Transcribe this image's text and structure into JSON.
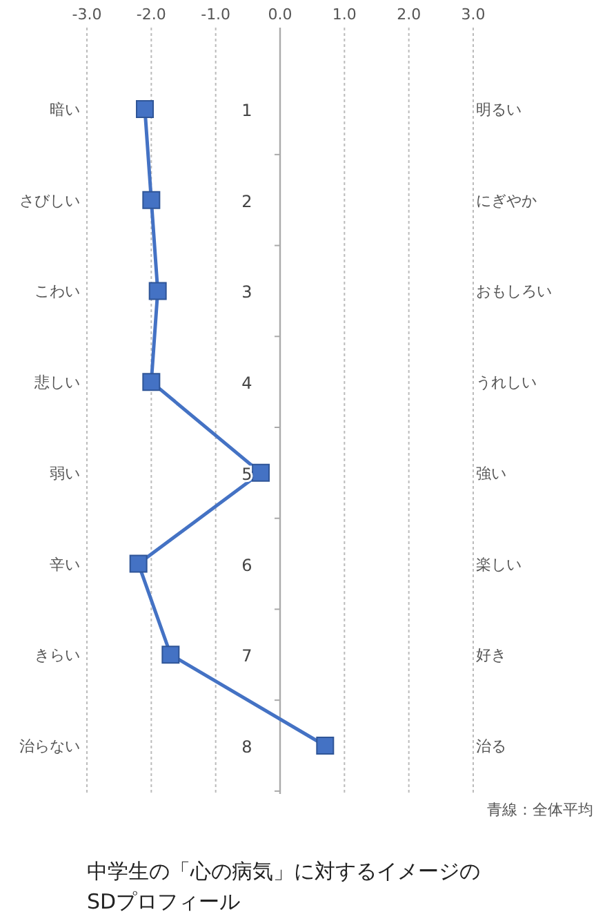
{
  "chart_data": {
    "type": "line",
    "orientation": "horizontal",
    "title": "中学生の「心の病気」に対するイメージのSDプロフィール",
    "categories": [
      "暗い",
      "さびしい",
      "こわい",
      "悲しい",
      "弱い",
      "辛い",
      "きらい",
      "治らない"
    ],
    "y2_categories": [
      "明るい",
      "にぎやか",
      "おもしろい",
      "うれしい",
      "強い",
      "楽しい",
      "好き",
      "治る"
    ],
    "series": [
      {
        "color": "#4472c4",
        "values": [
          -2.1,
          -2.0,
          -1.9,
          -2.0,
          -0.3,
          -2.2,
          -1.7,
          0.7
        ]
      }
    ],
    "xlim": [
      -3,
      3
    ],
    "xticks": [
      {
        "value": -3,
        "label": "-3.0"
      },
      {
        "value": -2,
        "label": "-2.0"
      },
      {
        "value": -1,
        "label": "-1.0"
      },
      {
        "value": 0,
        "label": "0.0"
      },
      {
        "value": 1,
        "label": "1.0"
      },
      {
        "value": 2,
        "label": "2.0"
      },
      {
        "value": 3,
        "label": "3.0"
      }
    ],
    "grid": "x",
    "marker": "square",
    "line_style": "solid",
    "annotations": [
      "1",
      "2",
      "3",
      "4",
      "5",
      "6",
      "7",
      "8",
      "青線：全体平均"
    ]
  }
}
